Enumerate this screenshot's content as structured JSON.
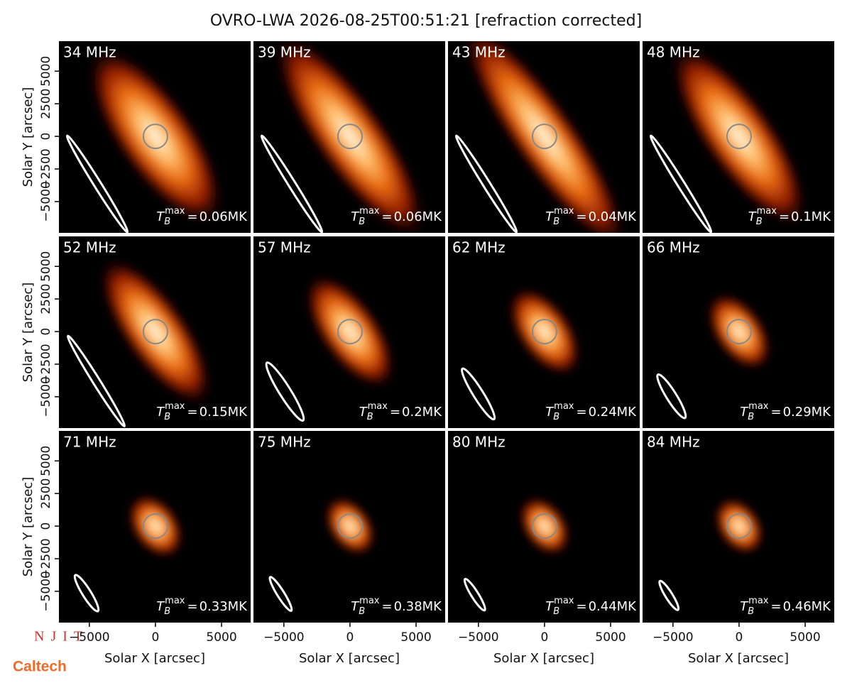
{
  "title": "OVRO-LWA 2026-08-25T00:51:21 [refraction corrected]",
  "x_label": "Solar X [arcsec]",
  "y_label": "Solar Y [arcsec]",
  "xlim": [
    -7300,
    7200
  ],
  "ylim": [
    -7400,
    7300
  ],
  "xticks": [
    {
      "value": -5000,
      "label": "−5000"
    },
    0,
    5000
  ],
  "yticks": [
    {
      "value": -5000,
      "label": "−5000"
    },
    {
      "value": -2500,
      "label": "−2500"
    },
    0,
    2500,
    5000
  ],
  "annotation": {
    "symbol": "T",
    "subscript": "B",
    "superscript": "max",
    "equals": "="
  },
  "panels": [
    {
      "label": "34 MHz",
      "tmax": "0.06MK"
    },
    {
      "label": "39 MHz",
      "tmax": "0.06MK"
    },
    {
      "label": "43 MHz",
      "tmax": "0.04MK"
    },
    {
      "label": "48 MHz",
      "tmax": "0.1MK"
    },
    {
      "label": "52 MHz",
      "tmax": "0.15MK"
    },
    {
      "label": "57 MHz",
      "tmax": "0.2MK"
    },
    {
      "label": "62 MHz",
      "tmax": "0.24MK"
    },
    {
      "label": "66 MHz",
      "tmax": "0.29MK"
    },
    {
      "label": "71 MHz",
      "tmax": "0.33MK"
    },
    {
      "label": "75 MHz",
      "tmax": "0.38MK"
    },
    {
      "label": "80 MHz",
      "tmax": "0.44MK"
    },
    {
      "label": "84 MHz",
      "tmax": "0.46MK"
    }
  ],
  "logos": [
    "NJIT",
    "Caltech"
  ]
}
